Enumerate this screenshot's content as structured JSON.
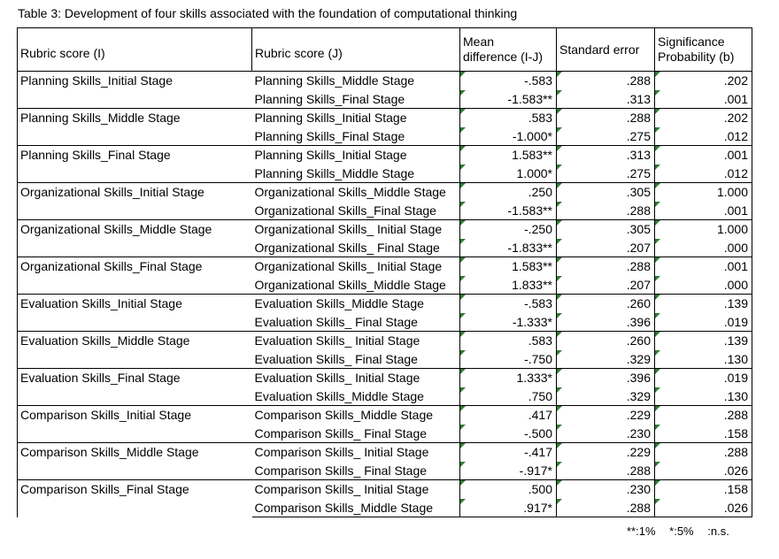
{
  "caption": "Table 3: Development of four skills associated with the foundation of computational thinking",
  "headers": {
    "col1": "Rubric score (I)",
    "col2": "Rubric score (J)",
    "col3_line1": "Mean",
    "col3_line2": "difference (I-J)",
    "col4": "Standard error",
    "col5_line1": "Significance",
    "col5_line2": "Probability (b)"
  },
  "groups": [
    {
      "i": "Planning Skills_Initial Stage",
      "rows": [
        {
          "j": "Planning Skills_Middle Stage",
          "md": "-.583",
          "se": ".288",
          "sig": ".202"
        },
        {
          "j": "Planning Skills_Final Stage",
          "md": "-1.583**",
          "se": ".313",
          "sig": ".001"
        }
      ]
    },
    {
      "i": "Planning Skills_Middle Stage",
      "rows": [
        {
          "j": "Planning Skills_Initial Stage",
          "md": ".583",
          "se": ".288",
          "sig": ".202"
        },
        {
          "j": "Planning Skills_Final Stage",
          "md": "-1.000*",
          "se": ".275",
          "sig": ".012"
        }
      ]
    },
    {
      "i": "Planning Skills_Final Stage",
      "rows": [
        {
          "j": "Planning Skills_Initial Stage",
          "md": "1.583**",
          "se": ".313",
          "sig": ".001"
        },
        {
          "j": "Planning Skills_Middle Stage",
          "md": "1.000*",
          "se": ".275",
          "sig": ".012"
        }
      ]
    },
    {
      "i": "Organizational Skills_Initial Stage",
      "rows": [
        {
          "j": "Organizational Skills_Middle Stage",
          "md": ".250",
          "se": ".305",
          "sig": "1.000"
        },
        {
          "j": "Organizational Skills_Final Stage",
          "md": "-1.583**",
          "se": ".288",
          "sig": ".001"
        }
      ]
    },
    {
      "i": "Organizational Skills_Middle Stage",
      "rows": [
        {
          "j": "Organizational Skills_ Initial Stage",
          "md": "-.250",
          "se": ".305",
          "sig": "1.000"
        },
        {
          "j": "Organizational Skills_ Final Stage",
          "md": "-1.833**",
          "se": ".207",
          "sig": ".000"
        }
      ]
    },
    {
      "i": "Organizational Skills_Final Stage",
      "rows": [
        {
          "j": "Organizational Skills_ Initial Stage",
          "md": "1.583**",
          "se": ".288",
          "sig": ".001"
        },
        {
          "j": "Organizational Skills_Middle Stage",
          "md": "1.833**",
          "se": ".207",
          "sig": ".000"
        }
      ]
    },
    {
      "i": "Evaluation Skills_Initial Stage",
      "rows": [
        {
          "j": "Evaluation Skills_Middle Stage",
          "md": "-.583",
          "se": ".260",
          "sig": ".139"
        },
        {
          "j": "Evaluation Skills_ Final Stage",
          "md": "-1.333*",
          "se": ".396",
          "sig": ".019"
        }
      ]
    },
    {
      "i": "Evaluation Skills_Middle Stage",
      "rows": [
        {
          "j": "Evaluation Skills_ Initial Stage",
          "md": ".583",
          "se": ".260",
          "sig": ".139"
        },
        {
          "j": "Evaluation Skills_ Final Stage",
          "md": "-.750",
          "se": ".329",
          "sig": ".130"
        }
      ]
    },
    {
      "i": "Evaluation Skills_Final Stage",
      "rows": [
        {
          "j": "Evaluation Skills_ Initial Stage",
          "md": "1.333*",
          "se": ".396",
          "sig": ".019"
        },
        {
          "j": "Evaluation Skills_Middle Stage",
          "md": ".750",
          "se": ".329",
          "sig": ".130"
        }
      ]
    },
    {
      "i": "Comparison Skills_Initial Stage",
      "rows": [
        {
          "j": "Comparison Skills_Middle Stage",
          "md": ".417",
          "se": ".229",
          "sig": ".288"
        },
        {
          "j": "Comparison Skills_ Final Stage",
          "md": "-.500",
          "se": ".230",
          "sig": ".158"
        }
      ]
    },
    {
      "i": "Comparison Skills_Middle Stage",
      "rows": [
        {
          "j": "Comparison Skills_ Initial Stage",
          "md": "-.417",
          "se": ".229",
          "sig": ".288"
        },
        {
          "j": "Comparison Skills_ Final Stage",
          "md": "-.917*",
          "se": ".288",
          "sig": ".026"
        }
      ]
    },
    {
      "i": "Comparison Skills_Final Stage",
      "rows": [
        {
          "j": "Comparison Skills_ Initial Stage",
          "md": ".500",
          "se": ".230",
          "sig": ".158"
        },
        {
          "j": "Comparison Skills_Middle Stage",
          "md": ".917*",
          "se": ".288",
          "sig": ".026"
        }
      ]
    }
  ],
  "legend": {
    "one_percent": "**:1%",
    "five_percent": "*:5%",
    "ns": ":n.s."
  },
  "colors": {
    "cell_marker": "#2e7d32"
  }
}
